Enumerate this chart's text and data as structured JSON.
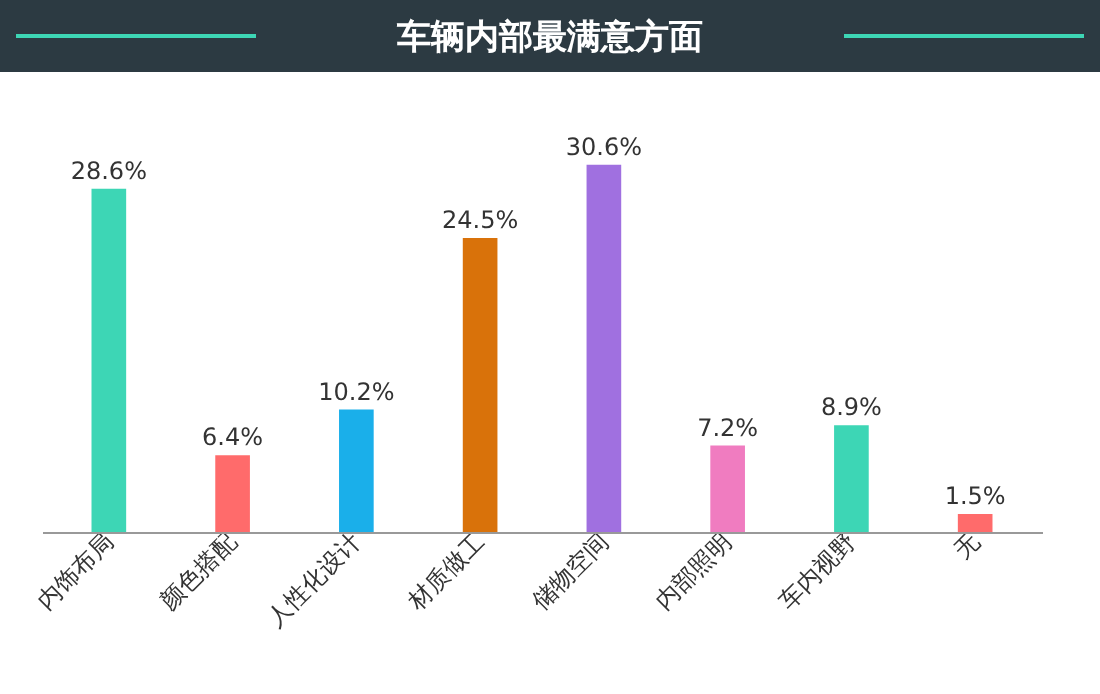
{
  "chart_data": {
    "type": "bar",
    "title": "车辆内部最满意方面",
    "categories": [
      "内饰布局",
      "颜色搭配",
      "人性化设计",
      "材质做工",
      "储物空间",
      "内部照明",
      "车内视野",
      "无"
    ],
    "values": [
      28.6,
      6.4,
      10.2,
      24.5,
      30.6,
      7.2,
      8.9,
      1.5
    ],
    "value_labels": [
      "28.6%",
      "6.4%",
      "10.2%",
      "24.5%",
      "30.6%",
      "7.2%",
      "8.9%",
      "1.5%"
    ],
    "colors": [
      "#3dd6b5",
      "#ff6b6b",
      "#1aafea",
      "#d9720a",
      "#a070e0",
      "#f07cc0",
      "#3dd6b5",
      "#ff6b6b"
    ],
    "grid": false
  }
}
